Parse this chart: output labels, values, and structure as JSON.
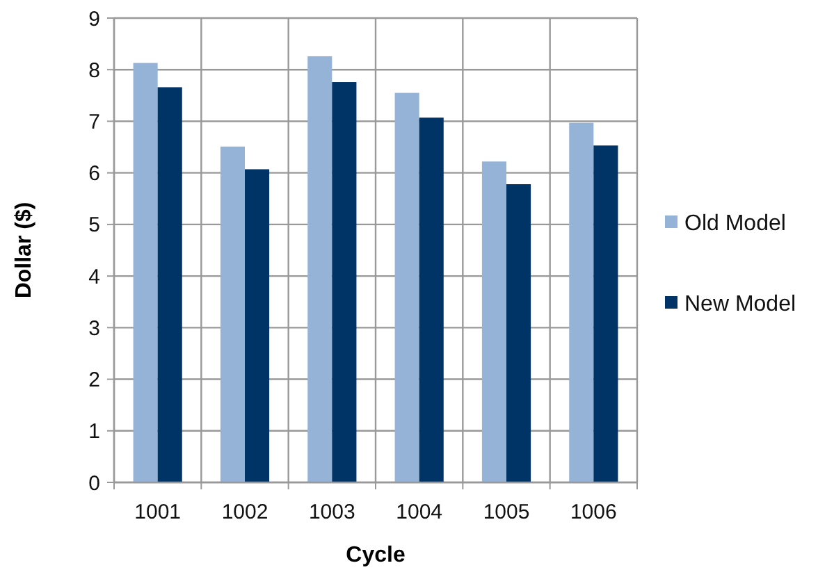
{
  "chart_data": {
    "type": "bar",
    "xlabel": "Cycle",
    "ylabel": "Dollar ($)",
    "categories": [
      "1001",
      "1002",
      "1003",
      "1004",
      "1005",
      "1006"
    ],
    "series": [
      {
        "name": "Old Model",
        "color": "#95b3d7",
        "values": [
          8.13,
          6.51,
          8.26,
          7.55,
          6.22,
          6.97
        ]
      },
      {
        "name": "New Model",
        "color": "#003366",
        "values": [
          7.66,
          6.07,
          7.76,
          7.07,
          5.78,
          6.53
        ]
      }
    ],
    "ylim": [
      0,
      9
    ],
    "yticks": [
      0,
      1,
      2,
      3,
      4,
      5,
      6,
      7,
      8,
      9
    ],
    "grid": true,
    "legend": "right"
  }
}
